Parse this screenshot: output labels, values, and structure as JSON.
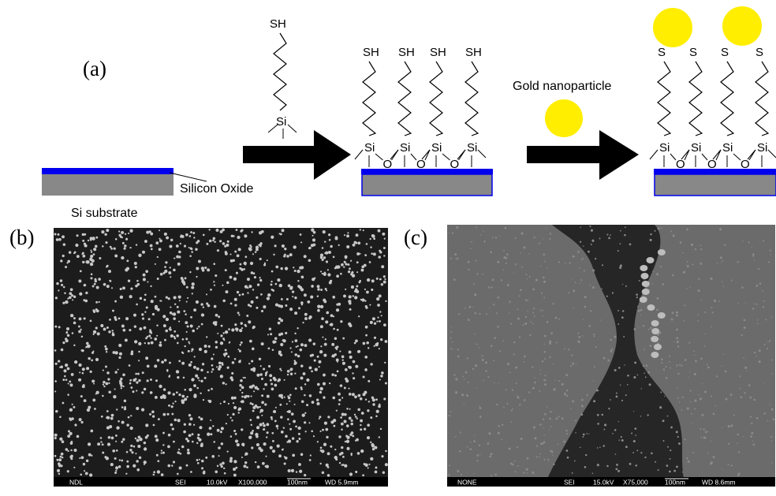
{
  "panel_a": {
    "label": "(a)",
    "free_molecule": {
      "thiol": "SH",
      "silicon": "Si"
    },
    "substrate": {
      "oxide_label": "Silicon Oxide",
      "substrate_label": "Si substrate"
    },
    "monolayer": {
      "thiols": [
        "SH",
        "SH",
        "SH",
        "SH"
      ],
      "silicons": [
        "Si",
        "Si",
        "Si",
        "Si"
      ],
      "oxygens": [
        "O",
        "O",
        "O"
      ]
    },
    "nanoparticle_label": "Gold nanoparticle",
    "assembled": {
      "sulfurs": [
        "S",
        "S",
        "S",
        "S"
      ],
      "silicons": [
        "Si",
        "Si",
        "Si",
        "Si"
      ],
      "oxygens": [
        "O",
        "O",
        "O"
      ]
    }
  },
  "panel_b": {
    "label": "(b)",
    "info_bar": [
      "NDL",
      "SEI",
      "10.0kV",
      "X100,000",
      "100nm",
      "WD 5.9mm"
    ]
  },
  "panel_c": {
    "label": "(c)",
    "info_bar": [
      "NONE",
      "SEI",
      "15.0kV",
      "X75,000",
      "100nm",
      "WD 8.6mm"
    ]
  }
}
